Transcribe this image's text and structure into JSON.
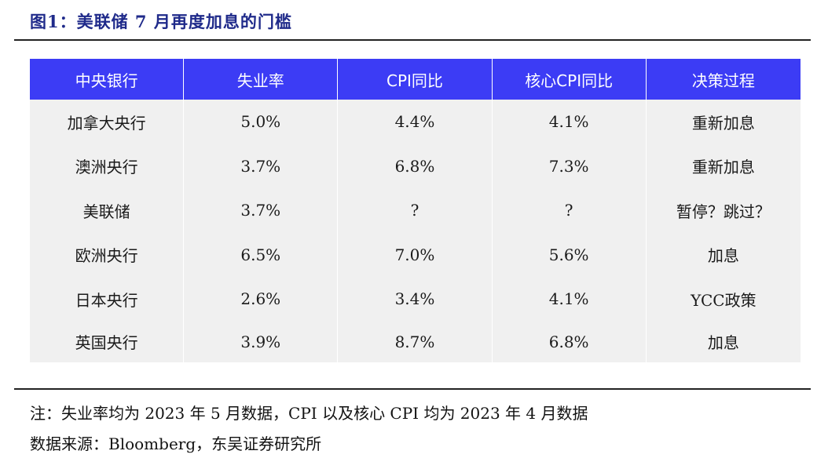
{
  "figure": {
    "title": "图1：美联储 7 月再度加息的门槛"
  },
  "table": {
    "headers": [
      "中央银行",
      "失业率",
      "CPI同比",
      "核心CPI同比",
      "决策过程"
    ],
    "rows": [
      [
        "加拿大央行",
        "5.0%",
        "4.4%",
        "4.1%",
        "重新加息"
      ],
      [
        "澳洲央行",
        "3.7%",
        "6.8%",
        "7.3%",
        "重新加息"
      ],
      [
        "美联储",
        "3.7%",
        "?",
        "?",
        "暂停？跳过？"
      ],
      [
        "欧洲央行",
        "6.5%",
        "7.0%",
        "5.6%",
        "加息"
      ],
      [
        "日本央行",
        "2.6%",
        "3.4%",
        "4.1%",
        "YCC政策"
      ],
      [
        "英国央行",
        "3.9%",
        "8.7%",
        "6.8%",
        "加息"
      ]
    ]
  },
  "notes": {
    "note": "注：失业率均为 2023 年 5 月数据，CPI 以及核心 CPI 均为 2023 年 4 月数据",
    "source": "数据来源：Bloomberg，东吴证券研究所"
  },
  "colors": {
    "header_bg": "#3c3cf5",
    "title": "#1f2a8a",
    "cell_bg": "#f0f0f0"
  }
}
